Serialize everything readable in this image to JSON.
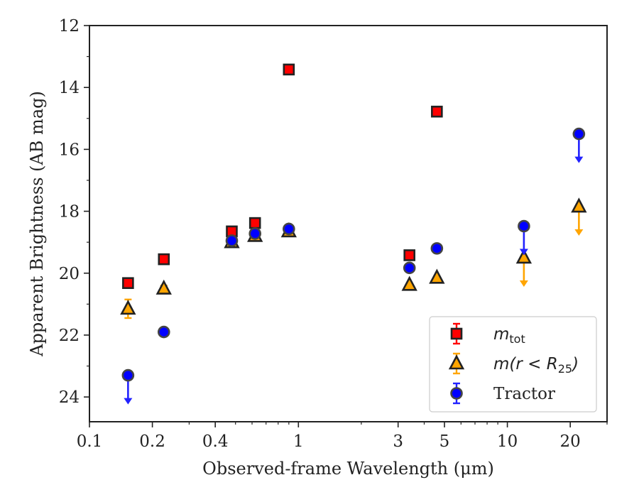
{
  "chart_data": {
    "type": "scatter",
    "xlabel": "Observed-frame Wavelength (μm)",
    "ylabel": "Apparent Brightness (AB mag)",
    "xscale": "log",
    "xlim": [
      0.1,
      30
    ],
    "ylim": [
      24.8,
      12
    ],
    "y_inverted": true,
    "grid": false,
    "legend_position": "lower-right",
    "x_ticks": [
      0.1,
      0.2,
      0.4,
      1,
      3,
      5,
      10,
      20
    ],
    "x_tick_labels": [
      "0.1",
      "0.2",
      "0.4",
      "1",
      "3",
      "5",
      "10",
      "20"
    ],
    "y_ticks": [
      12,
      14,
      16,
      18,
      20,
      22,
      24
    ],
    "y_tick_labels": [
      "12",
      "14",
      "16",
      "18",
      "20",
      "22",
      "24"
    ],
    "series": [
      {
        "key": "mtot",
        "legend_main": "m",
        "legend_sub": "tot",
        "marker": "square",
        "color": "#ff0000",
        "edge_color": "#222222",
        "error_color": "#ff0000",
        "points": [
          {
            "x": 0.153,
            "y": 20.32
          },
          {
            "x": 0.227,
            "y": 19.55
          },
          {
            "x": 0.48,
            "y": 18.65
          },
          {
            "x": 0.62,
            "y": 18.38
          },
          {
            "x": 0.9,
            "y": 13.42
          },
          {
            "x": 3.4,
            "y": 19.42
          },
          {
            "x": 4.6,
            "y": 14.78
          }
        ]
      },
      {
        "key": "mr25",
        "legend_main": "m(r < R",
        "legend_sub": "25",
        "legend_end": ")",
        "marker": "triangle",
        "color": "#ffa500",
        "edge_color": "#222222",
        "error_color": "#ffa500",
        "points": [
          {
            "x": 0.153,
            "y": 21.15,
            "err": 0.3
          },
          {
            "x": 0.227,
            "y": 20.5,
            "err": 0.1
          },
          {
            "x": 0.48,
            "y": 19.0
          },
          {
            "x": 0.62,
            "y": 18.8
          },
          {
            "x": 0.9,
            "y": 18.65
          },
          {
            "x": 3.4,
            "y": 20.38
          },
          {
            "x": 4.6,
            "y": 20.15
          },
          {
            "x": 12.0,
            "y": 19.5,
            "upper_limit": true
          },
          {
            "x": 22.0,
            "y": 17.85,
            "upper_limit": true
          }
        ]
      },
      {
        "key": "tractor",
        "legend_main": "Tractor",
        "marker": "circle",
        "color": "#0000ff",
        "edge_color": "#444444",
        "error_color": "#2222ff",
        "points": [
          {
            "x": 0.153,
            "y": 23.3,
            "upper_limit": true
          },
          {
            "x": 0.227,
            "y": 21.9
          },
          {
            "x": 0.48,
            "y": 18.95
          },
          {
            "x": 0.62,
            "y": 18.72
          },
          {
            "x": 0.9,
            "y": 18.57
          },
          {
            "x": 3.4,
            "y": 19.83
          },
          {
            "x": 4.6,
            "y": 19.2
          },
          {
            "x": 12.0,
            "y": 18.48,
            "upper_limit": true
          },
          {
            "x": 22.0,
            "y": 15.5,
            "upper_limit": true
          }
        ]
      }
    ]
  }
}
